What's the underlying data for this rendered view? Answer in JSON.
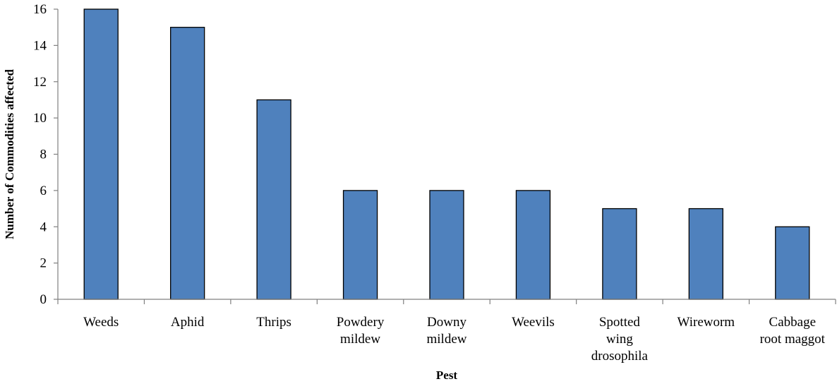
{
  "chart_data": {
    "type": "bar",
    "categories": [
      [
        "Weeds"
      ],
      [
        "Aphid"
      ],
      [
        "Thrips"
      ],
      [
        "Powdery",
        "mildew"
      ],
      [
        "Downy",
        "mildew"
      ],
      [
        "Weevils"
      ],
      [
        "Spotted",
        "wing",
        "drosophila"
      ],
      [
        "Wireworm"
      ],
      [
        "Cabbage",
        "root maggot"
      ]
    ],
    "values": [
      16,
      15,
      11,
      6,
      6,
      6,
      5,
      5,
      4
    ],
    "title": "",
    "xlabel": "Pest",
    "ylabel": "Number  of Commodities  affected",
    "ylim": [
      0,
      16
    ],
    "yticks": [
      0,
      2,
      4,
      6,
      8,
      10,
      12,
      14,
      16
    ],
    "bar_color": "#4f81bd",
    "grid": false,
    "legend": "none"
  }
}
